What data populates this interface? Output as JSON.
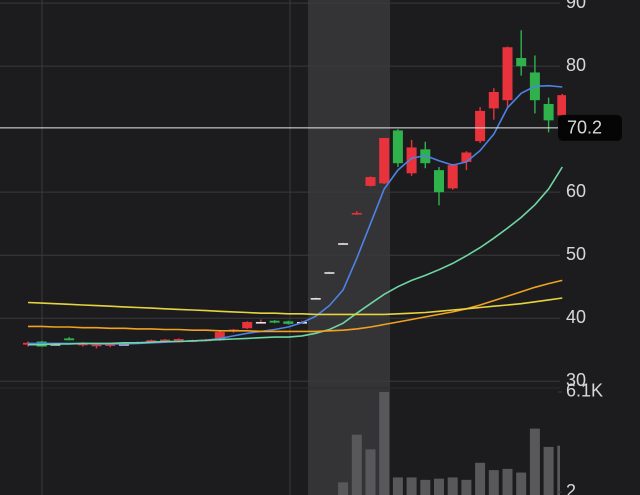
{
  "chart_data": {
    "type": "candlestick",
    "ylim": [
      29.4,
      90.5
    ],
    "yticks": [
      30,
      40,
      50,
      60,
      80,
      90
    ],
    "grid": true,
    "up_color": "#e8323c",
    "down_color": "#2fb24c",
    "ohlc": [
      [
        35.8,
        36.3,
        35.5,
        36.1
      ],
      [
        36.3,
        36.4,
        35.5,
        35.5
      ],
      [
        35.9,
        36.0,
        35.7,
        35.9
      ],
      [
        36.8,
        37.0,
        36.5,
        36.5
      ],
      [
        35.7,
        36.2,
        35.5,
        36.0
      ],
      [
        35.6,
        35.9,
        35.2,
        35.8
      ],
      [
        35.6,
        36.1,
        35.4,
        35.9
      ],
      [
        35.9,
        36.0,
        35.8,
        35.9
      ],
      [
        36.0,
        36.3,
        35.9,
        36.2
      ],
      [
        36.1,
        36.6,
        36.0,
        36.5
      ],
      [
        36.2,
        36.7,
        36.1,
        36.6
      ],
      [
        36.3,
        36.8,
        36.2,
        36.7
      ],
      [
        36.4,
        36.6,
        36.2,
        36.5
      ],
      [
        36.5,
        36.7,
        36.3,
        36.6
      ],
      [
        36.5,
        38.0,
        36.4,
        37.8
      ],
      [
        37.9,
        38.3,
        37.7,
        38.2
      ],
      [
        38.4,
        39.5,
        38.3,
        39.4
      ],
      [
        39.4,
        39.8,
        39.2,
        39.4
      ],
      [
        39.6,
        39.7,
        39.2,
        39.3
      ],
      [
        39.5,
        39.6,
        39.0,
        39.1
      ],
      [
        39.4,
        39.6,
        39.3,
        39.4
      ],
      [
        43.2,
        43.3,
        43.1,
        43.2
      ],
      [
        47.3,
        47.4,
        47.2,
        47.3
      ],
      [
        51.9,
        52.0,
        51.8,
        51.9
      ],
      [
        56.5,
        57.0,
        56.4,
        56.7
      ],
      [
        61.0,
        62.5,
        60.9,
        62.4
      ],
      [
        61.4,
        68.6,
        61.3,
        68.6
      ],
      [
        69.8,
        70.0,
        64.0,
        64.6
      ],
      [
        63.0,
        68.3,
        62.6,
        67.1
      ],
      [
        66.8,
        68.0,
        63.8,
        64.6
      ],
      [
        63.5,
        64.0,
        57.9,
        60.0
      ],
      [
        60.6,
        64.5,
        60.4,
        64.3
      ],
      [
        64.8,
        66.5,
        63.5,
        66.3
      ],
      [
        68.1,
        73.5,
        67.8,
        72.9
      ],
      [
        73.3,
        76.5,
        71.5,
        75.9
      ],
      [
        74.6,
        83.1,
        73.5,
        83.0
      ],
      [
        81.3,
        85.7,
        78.5,
        80.0
      ],
      [
        79.0,
        81.7,
        72.5,
        74.6
      ],
      [
        74.0,
        75.0,
        69.5,
        71.4
      ],
      [
        72.2,
        75.6,
        72.0,
        75.4
      ]
    ],
    "series": [
      {
        "color": "#4d82e6",
        "values": [
          36.0,
          36.0,
          36.0,
          36.0,
          36.0,
          35.9,
          35.9,
          35.9,
          36.0,
          36.1,
          36.2,
          36.3,
          36.4,
          36.5,
          36.8,
          37.2,
          37.6,
          37.9,
          38.2,
          38.6,
          39.3,
          40.3,
          42.0,
          44.5,
          49.5,
          55.0,
          60.5,
          63.5,
          65.4,
          65.8,
          65.0,
          64.3,
          64.8,
          66.6,
          69.2,
          73.4,
          75.7,
          76.8,
          76.9,
          76.7
        ]
      },
      {
        "color": "#6fd6a4",
        "values": [
          35.8,
          35.8,
          35.9,
          35.9,
          36.0,
          36.0,
          36.0,
          36.1,
          36.1,
          36.2,
          36.3,
          36.3,
          36.4,
          36.5,
          36.6,
          36.7,
          36.8,
          36.9,
          37.0,
          37.0,
          37.2,
          37.6,
          38.2,
          39.2,
          40.8,
          42.3,
          43.8,
          45.0,
          46.0,
          46.8,
          47.7,
          48.7,
          49.9,
          51.2,
          52.7,
          54.3,
          56.0,
          58.0,
          60.5,
          64.0
        ]
      },
      {
        "color": "#f0a21e",
        "values": [
          38.7,
          38.7,
          38.6,
          38.6,
          38.5,
          38.5,
          38.4,
          38.4,
          38.3,
          38.3,
          38.2,
          38.2,
          38.1,
          38.1,
          38.0,
          38.0,
          38.0,
          37.9,
          37.9,
          37.9,
          37.9,
          37.9,
          38.0,
          38.1,
          38.3,
          38.6,
          39.0,
          39.4,
          39.8,
          40.2,
          40.6,
          41.0,
          41.5,
          42.1,
          42.8,
          43.5,
          44.2,
          44.9,
          45.5,
          46.0
        ]
      },
      {
        "color": "#e4d43e",
        "values": [
          42.5,
          42.4,
          42.3,
          42.2,
          42.1,
          42.0,
          41.9,
          41.8,
          41.7,
          41.6,
          41.5,
          41.4,
          41.3,
          41.2,
          41.1,
          41.0,
          40.9,
          40.8,
          40.8,
          40.7,
          40.7,
          40.6,
          40.6,
          40.6,
          40.6,
          40.6,
          40.6,
          40.7,
          40.8,
          40.9,
          41.1,
          41.3,
          41.5,
          41.7,
          41.9,
          42.1,
          42.3,
          42.6,
          42.9,
          43.2
        ]
      }
    ],
    "last_price": 70.2,
    "volume": [
      null,
      null,
      null,
      null,
      null,
      null,
      null,
      null,
      null,
      null,
      null,
      null,
      null,
      null,
      null,
      null,
      null,
      null,
      null,
      null,
      null,
      null,
      null,
      2.4,
      4.35,
      3.75,
      6.1,
      2.6,
      2.6,
      2.5,
      2.55,
      2.6,
      2.5,
      3.2,
      2.9,
      2.95,
      2.8,
      4.6,
      3.85,
      3.9
    ],
    "volume_ylim": [
      1.88,
      6.14
    ],
    "volume_yticks": [
      {
        "value": 6.1,
        "label": "6.1K"
      },
      2
    ]
  }
}
